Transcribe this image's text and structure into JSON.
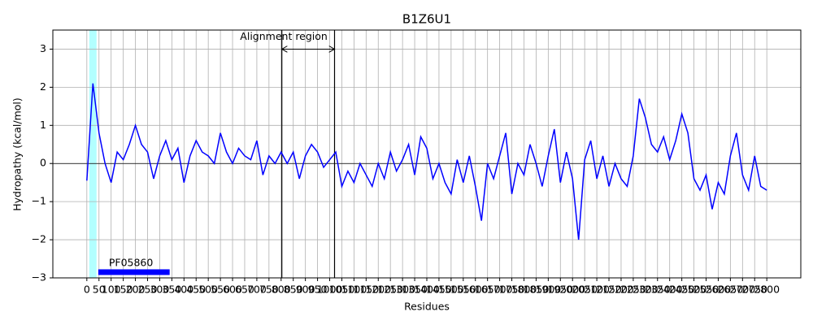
{
  "chart_data": {
    "type": "line",
    "title": "B1Z6U1",
    "xlabel": "Residues",
    "ylabel": "Hydropathy (kcal/mol)",
    "xlim": [
      -140,
      2940
    ],
    "ylim": [
      -3,
      3.5
    ],
    "xticks": [
      0,
      50,
      100,
      150,
      200,
      250,
      300,
      350,
      400,
      450,
      500,
      550,
      600,
      650,
      700,
      750,
      800,
      850,
      900,
      950,
      1000,
      1050,
      1100,
      1150,
      1200,
      1250,
      1300,
      1350,
      1400,
      1450,
      1500,
      1550,
      1600,
      1650,
      1700,
      1750,
      1800,
      1850,
      1900,
      1950,
      2000,
      2050,
      2100,
      2150,
      2200,
      2250,
      2300,
      2350,
      2400,
      2450,
      2500,
      2550,
      2600,
      2650,
      2700,
      2750,
      2800
    ],
    "yticks": [
      {
        "value": -3,
        "label": "−3"
      },
      {
        "value": -2,
        "label": "−2"
      },
      {
        "value": -1,
        "label": "−1"
      },
      0,
      1,
      2,
      3
    ],
    "grid": true,
    "x": [
      0,
      25,
      50,
      75,
      100,
      125,
      150,
      175,
      200,
      225,
      250,
      275,
      300,
      325,
      350,
      375,
      400,
      425,
      450,
      475,
      500,
      525,
      550,
      575,
      600,
      625,
      650,
      675,
      700,
      725,
      750,
      775,
      800,
      825,
      850,
      875,
      900,
      925,
      950,
      975,
      1000,
      1025,
      1050,
      1075,
      1100,
      1125,
      1150,
      1175,
      1200,
      1225,
      1250,
      1275,
      1300,
      1325,
      1350,
      1375,
      1400,
      1425,
      1450,
      1475,
      1500,
      1525,
      1550,
      1575,
      1600,
      1625,
      1650,
      1675,
      1700,
      1725,
      1750,
      1775,
      1800,
      1825,
      1850,
      1875,
      1900,
      1925,
      1950,
      1975,
      2000,
      2025,
      2050,
      2075,
      2100,
      2125,
      2150,
      2175,
      2200,
      2225,
      2250,
      2275,
      2300,
      2325,
      2350,
      2375,
      2400,
      2425,
      2450,
      2475,
      2500,
      2525,
      2550,
      2575,
      2600,
      2625,
      2650,
      2675,
      2700,
      2725,
      2750,
      2775,
      2800
    ],
    "series": [
      {
        "color": "#0000ff",
        "values": [
          -0.45,
          2.1,
          0.8,
          0.0,
          -0.5,
          0.3,
          0.1,
          0.5,
          1.0,
          0.5,
          0.3,
          -0.4,
          0.2,
          0.6,
          0.1,
          0.4,
          -0.5,
          0.2,
          0.6,
          0.3,
          0.2,
          0.0,
          0.8,
          0.3,
          0.0,
          0.4,
          0.2,
          0.1,
          0.6,
          -0.3,
          0.2,
          0.0,
          0.3,
          0.0,
          0.3,
          -0.4,
          0.2,
          0.5,
          0.3,
          -0.1,
          0.1,
          0.3,
          -0.6,
          -0.2,
          -0.5,
          0.0,
          -0.3,
          -0.6,
          0.0,
          -0.4,
          0.3,
          -0.2,
          0.1,
          0.5,
          -0.3,
          0.7,
          0.4,
          -0.4,
          0.0,
          -0.5,
          -0.8,
          0.1,
          -0.5,
          0.2,
          -0.6,
          -1.5,
          0.0,
          -0.4,
          0.2,
          0.8,
          -0.8,
          0.0,
          -0.3,
          0.5,
          0.0,
          -0.6,
          0.2,
          0.9,
          -0.5,
          0.3,
          -0.4,
          -2.0,
          0.1,
          0.6,
          -0.4,
          0.2,
          -0.6,
          0.0,
          -0.4,
          -0.6,
          0.2,
          1.7,
          1.2,
          0.5,
          0.3,
          0.7,
          0.1,
          0.6,
          1.3,
          0.8,
          -0.4,
          -0.7,
          -0.3,
          -1.2,
          -0.5,
          -0.8,
          0.2,
          0.8,
          -0.3,
          -0.7,
          0.2,
          -0.6,
          -0.7
        ]
      }
    ],
    "highlight": {
      "xmin": 10,
      "xmax": 40,
      "color": "#00ffff"
    },
    "region": {
      "text": "Alignment region",
      "start": 803,
      "end": 1020,
      "y": 3
    },
    "domain": {
      "label": "PF05860",
      "start": 47,
      "end": 341,
      "y": -2.85,
      "color": "#0000ff"
    }
  }
}
